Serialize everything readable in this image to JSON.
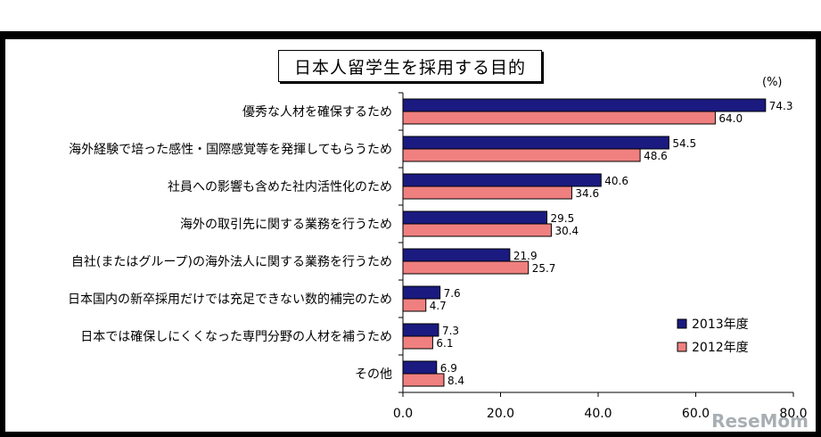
{
  "chart_data": {
    "type": "bar",
    "orientation": "horizontal",
    "title": "日本人留学生を採用する目的",
    "unit_label": "(%)",
    "categories": [
      "優秀な人材を確保するため",
      "海外経験で培った感性・国際感覚等を発揮してもらうため",
      "社員への影響も含めた社内活性化のため",
      "海外の取引先に関する業務を行うため",
      "自社(またはグループ)の海外法人に関する業務を行うため",
      "日本国内の新卒採用だけでは充足できない数的補完のため",
      "日本では確保しにくくなった専門分野の人材を補うため",
      "その他"
    ],
    "series": [
      {
        "name": "2013年度",
        "color": "#1a1a80",
        "values": [
          74.3,
          54.5,
          40.6,
          29.5,
          21.9,
          7.6,
          7.3,
          6.9
        ]
      },
      {
        "name": "2012年度",
        "color": "#f08080",
        "values": [
          64.0,
          48.6,
          34.6,
          30.4,
          25.7,
          4.7,
          6.1,
          8.4
        ]
      }
    ],
    "value_labels": [
      [
        "74.3",
        "54.5",
        "40.6",
        "29.5",
        "21.9",
        "7.6",
        "7.3",
        "6.9"
      ],
      [
        "64.0",
        "48.6",
        "34.6",
        "30.4",
        "25.7",
        "4.7",
        "6.1",
        "8.4"
      ]
    ],
    "xlim": [
      0,
      80
    ],
    "xticks": [
      "0.0",
      "20.0",
      "40.0",
      "60.0",
      "80.0"
    ],
    "legend_position": "bottom-right",
    "grid": false
  },
  "watermark": "ReseMom"
}
